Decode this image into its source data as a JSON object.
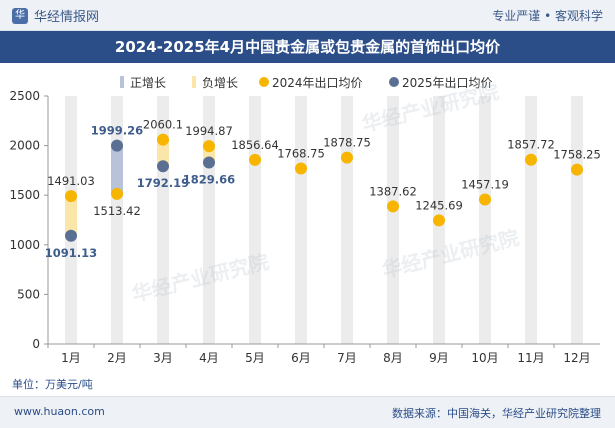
{
  "header": {
    "brand": "华经情报网",
    "tagline": "专业严谨 • 客观科学"
  },
  "chart_title": "2024-2025年4月中国贵金属或包贵金属的首饰出口均价",
  "unit_label": "单位：万美元/吨",
  "footer": {
    "site": "www.huaon.com",
    "source": "数据来源：中国海关，华经产业研究院整理"
  },
  "watermark": "华经产业研究院",
  "colors": {
    "s2024": "#f7b500",
    "s2025": "#5b6f93",
    "increase": "#b8c3d9",
    "decrease": "#fbe6a9",
    "column_bg": "#ececec",
    "axis_text": "#333333",
    "label_2025": "#3f5d8c"
  },
  "chart_data": {
    "type": "line",
    "title": "2024-2025年4月中国贵金属或包贵金属的首饰出口均价",
    "categories": [
      "1月",
      "2月",
      "3月",
      "4月",
      "5月",
      "6月",
      "7月",
      "8月",
      "9月",
      "10月",
      "11月",
      "12月"
    ],
    "legend": [
      "正增长",
      "负增长",
      "2024年出口均价",
      "2025年出口均价"
    ],
    "legend_position": "top",
    "series": [
      {
        "name": "2024年出口均价",
        "values": [
          1491.03,
          1513.42,
          2060.1,
          1994.87,
          1856.64,
          1768.75,
          1878.75,
          1387.62,
          1245.69,
          1457.19,
          1857.72,
          1758.25
        ]
      },
      {
        "name": "2025年出口均价",
        "values": [
          1091.13,
          1999.26,
          1792.19,
          1829.66,
          null,
          null,
          null,
          null,
          null,
          null,
          null,
          null
        ]
      }
    ],
    "ylim": [
      0,
      2500
    ],
    "yticks": [
      0,
      500,
      1000,
      1500,
      2000,
      2500
    ],
    "grid": false
  }
}
